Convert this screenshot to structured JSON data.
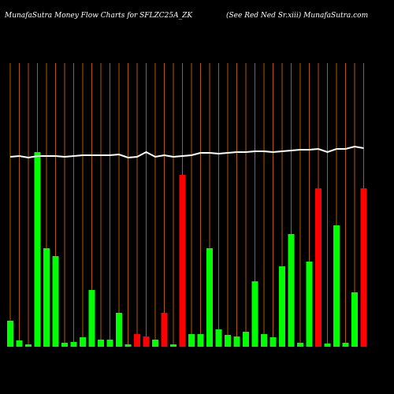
{
  "chart_data": {
    "type": "bar",
    "title": "MunafaSutra  Money Flow  Charts for SFLZC25A_ZK",
    "subtitle": "(See Red Ned Sr.xiii) MunafaSutra.com",
    "categories": [
      null,
      null,
      null,
      null,
      null,
      null,
      null,
      null,
      null,
      null,
      null,
      null,
      null,
      null,
      null,
      null,
      null,
      null,
      null,
      null,
      null,
      null,
      null,
      null,
      null,
      null,
      null,
      null,
      null,
      null,
      null,
      null,
      null,
      null,
      null,
      null,
      null,
      null,
      null,
      null
    ],
    "values": [
      33,
      8,
      3,
      247,
      125,
      115,
      5,
      6,
      12,
      72,
      9,
      9,
      43,
      3,
      16,
      13,
      9,
      43,
      3,
      218,
      16,
      16,
      125,
      22,
      15,
      13,
      19,
      83,
      16,
      12,
      102,
      143,
      5,
      108,
      201,
      4,
      154,
      5,
      69,
      201
    ],
    "bar_colors": [
      "#00ff00",
      "#00ff00",
      "#00ff00",
      "#00ff00",
      "#00ff00",
      "#00ff00",
      "#00ff00",
      "#00ff00",
      "#00ff00",
      "#00ff00",
      "#00ff00",
      "#00ff00",
      "#00ff00",
      "#00ff00",
      "#ff0000",
      "#ff0000",
      "#00ff00",
      "#ff0000",
      "#00ff00",
      "#ff0000",
      "#00ff00",
      "#00ff00",
      "#00ff00",
      "#00ff00",
      "#00ff00",
      "#00ff00",
      "#00ff00",
      "#00ff00",
      "#00ff00",
      "#00ff00",
      "#00ff00",
      "#00ff00",
      "#00ff00",
      "#00ff00",
      "#ff0000",
      "#00ff00",
      "#00ff00",
      "#00ff00",
      "#00ff00",
      "#ff0000"
    ],
    "line_values": [
      241,
      242,
      240,
      242,
      242,
      242,
      241,
      242,
      243,
      243,
      243,
      243,
      244,
      240,
      241,
      247,
      241,
      243,
      241,
      242,
      243,
      246,
      246,
      245,
      246,
      247,
      247,
      248,
      248,
      247,
      248,
      249,
      250,
      250,
      251,
      247,
      251,
      251,
      254,
      252
    ],
    "line_color": "#ffffff",
    "grid_color": "#b35900",
    "ylim": [
      0,
      360
    ]
  }
}
